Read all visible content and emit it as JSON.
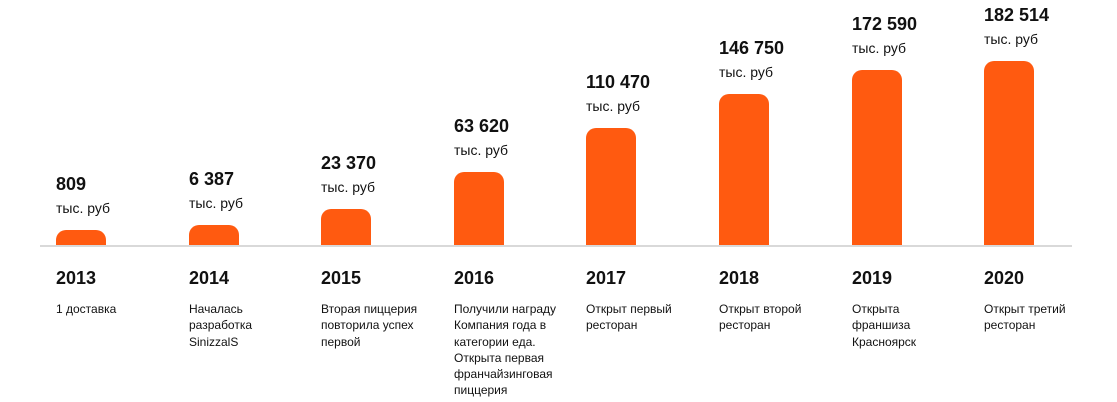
{
  "chart_data": {
    "type": "bar",
    "categories": [
      "2013",
      "2014",
      "2015",
      "2016",
      "2017",
      "2018",
      "2019",
      "2020"
    ],
    "values": [
      809,
      6387,
      23370,
      63620,
      110470,
      146750,
      172590,
      182514
    ],
    "value_labels": [
      "809",
      "6 387",
      "23 370",
      "63 620",
      "110 470",
      "146 750",
      "172 590",
      "182 514"
    ],
    "unit": "тыс. руб",
    "descriptions": [
      "1 доставка",
      "Началась\nразработка\nSinizzalS",
      "Вторая пиццерия\nповторила успех\nпервой",
      "Получили награду\nКомпания года в\nкатегории еда.\nОткрыта первая\nфранчайзинговая\nпиццерия",
      "Открыт первый\nресторан",
      "Открыт второй\nресторан",
      "Открыта\nфраншиза\nКрасноярск",
      "Открыт третий\nресторан"
    ],
    "title": "",
    "xlabel": "",
    "ylabel": "",
    "grid": false,
    "bar_color": "#ff5a10",
    "baseline_color": "#d9d9d9"
  }
}
